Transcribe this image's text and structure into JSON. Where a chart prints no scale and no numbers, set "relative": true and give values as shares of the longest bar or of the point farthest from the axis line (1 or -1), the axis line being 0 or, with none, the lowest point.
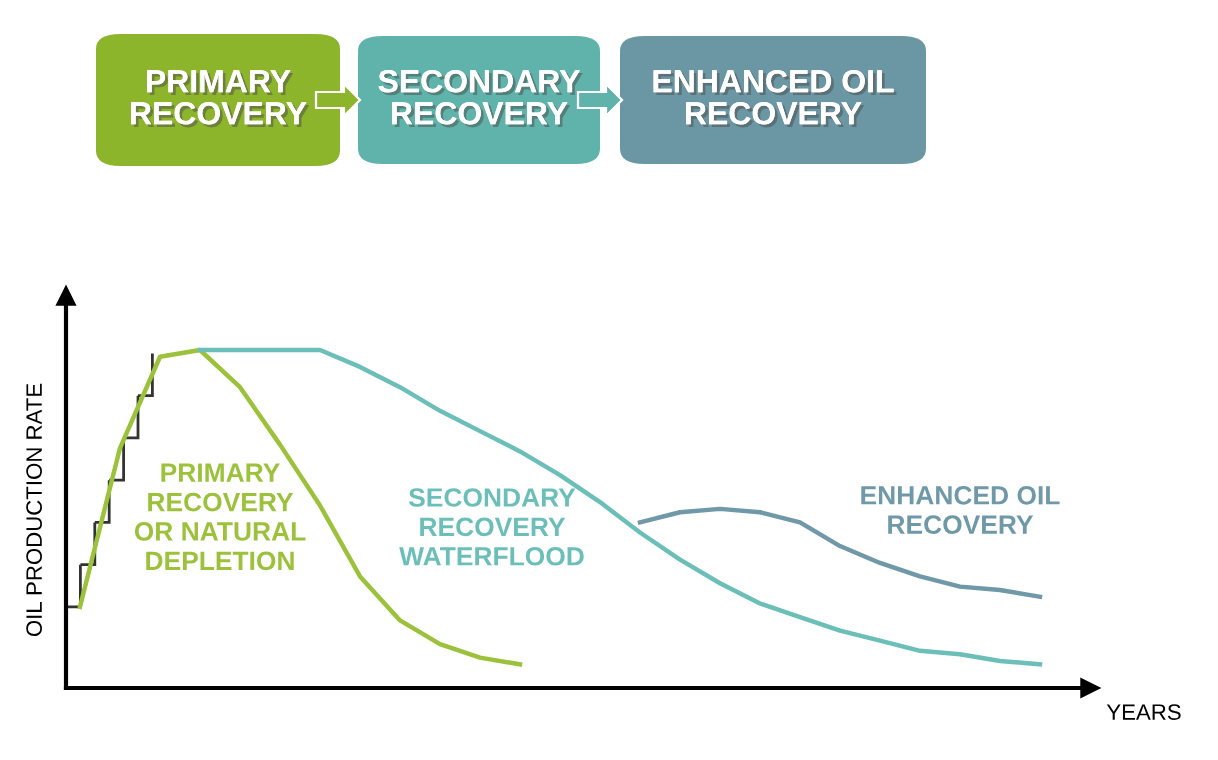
{
  "chart_data": {
    "type": "line",
    "relative": true,
    "xlabel": "YEARS",
    "ylabel": "OIL PRODUCTION RATE",
    "annotations": [
      "PRIMARY\nRECOVERY",
      "SECONDARY\nRECOVERY",
      "ENHANCED OIL\nRECOVERY"
    ],
    "categories": [
      null,
      null,
      null,
      null,
      null,
      null,
      null,
      null,
      null,
      null,
      null,
      null,
      null,
      null,
      null,
      null,
      null,
      null,
      null,
      null,
      null,
      null,
      null,
      null,
      null,
      null
    ],
    "grid": false,
    "marker": "none",
    "line_style": "solid",
    "series": [
      {
        "name": "PRIMARY\nRECOVERY\nOR NATURAL\nDEPLETION",
        "color": "#9cc13b",
        "values": [
          0.24,
          0.71,
          0.98,
          1.0,
          0.89,
          0.72,
          0.54,
          0.33,
          0.2,
          0.13,
          0.09,
          0.07,
          null,
          null,
          null,
          null,
          null,
          null,
          null,
          null,
          null,
          null,
          null,
          null,
          null,
          null
        ]
      },
      {
        "name": "SECONDARY\nRECOVERY\nWATERFLOOD",
        "color": "#6bbfb8",
        "values": [
          null,
          null,
          null,
          1.0,
          1.0,
          1.0,
          1.0,
          0.95,
          0.89,
          0.82,
          0.76,
          0.7,
          0.63,
          0.55,
          0.46,
          0.38,
          0.31,
          0.25,
          0.21,
          0.17,
          0.14,
          0.11,
          0.1,
          0.08,
          0.07,
          null
        ]
      },
      {
        "name": "ENHANCED OIL\nRECOVERY",
        "color": "#6f98a8",
        "values": [
          null,
          null,
          null,
          null,
          null,
          null,
          null,
          null,
          null,
          null,
          null,
          null,
          null,
          null,
          0.49,
          0.52,
          0.53,
          0.52,
          0.49,
          0.42,
          0.37,
          0.33,
          0.3,
          0.29,
          0.27,
          null
        ]
      }
    ]
  }
}
